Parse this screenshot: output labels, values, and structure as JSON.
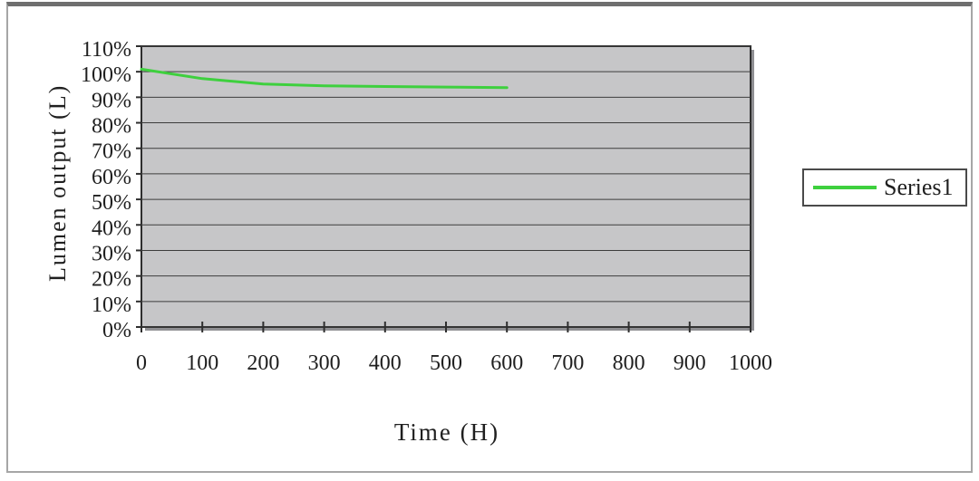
{
  "chart_data": {
    "type": "line",
    "title": "",
    "xlabel": "Time (H)",
    "ylabel": "Lumen output (L)",
    "xlim": [
      0,
      1000
    ],
    "ylim": [
      0,
      110
    ],
    "xticks": [
      0,
      100,
      200,
      300,
      400,
      500,
      600,
      700,
      800,
      900,
      1000
    ],
    "yticks": [
      {
        "value": 110,
        "label": "110%"
      },
      {
        "value": 100,
        "label": "100%"
      },
      {
        "value": 90,
        "label": "90%"
      },
      {
        "value": 80,
        "label": "80%"
      },
      {
        "value": 70,
        "label": "70%"
      },
      {
        "value": 60,
        "label": "60%"
      },
      {
        "value": 50,
        "label": "50%"
      },
      {
        "value": 40,
        "label": "40%"
      },
      {
        "value": 30,
        "label": "30%"
      },
      {
        "value": 20,
        "label": "20%"
      },
      {
        "value": 10,
        "label": "10%"
      },
      {
        "value": 0,
        "label": "0%"
      }
    ],
    "grid": "horizontal",
    "legend_position": "right",
    "plot_background": "#c6c6c8",
    "gridline_color": "#3c3c3c",
    "axis_color": "#2e2e2e",
    "shadow_color": "#8f8f93",
    "series": [
      {
        "name": "Series1",
        "color": "#3ed03e",
        "points": [
          [
            0,
            101
          ],
          [
            100,
            97.3
          ],
          [
            200,
            95.2
          ],
          [
            300,
            94.5
          ],
          [
            400,
            94.2
          ],
          [
            500,
            94.0
          ],
          [
            600,
            93.8
          ]
        ]
      }
    ]
  }
}
